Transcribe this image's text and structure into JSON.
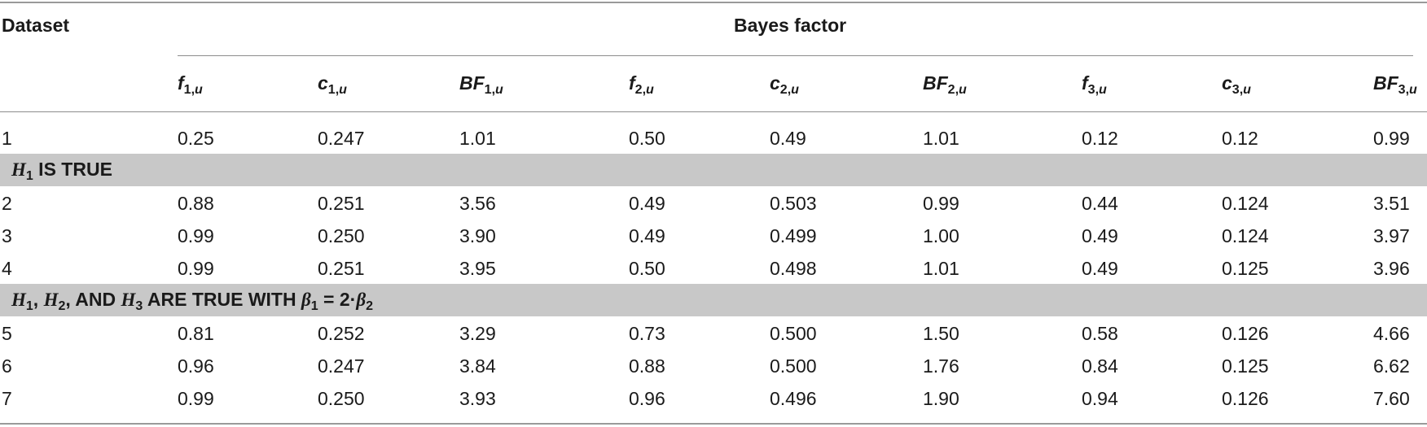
{
  "header": {
    "dataset_label": "Dataset",
    "bayes_factor_label": "Bayes factor",
    "columns": [
      {
        "sym": "f",
        "sub": "1,",
        "subi": "u"
      },
      {
        "sym": "c",
        "sub": "1,",
        "subi": "u"
      },
      {
        "sym": "BF",
        "sub": "1,",
        "subi": "u"
      },
      {
        "sym": "f",
        "sub": "2,",
        "subi": "u"
      },
      {
        "sym": "c",
        "sub": "2,",
        "subi": "u"
      },
      {
        "sym": "BF",
        "sub": "2,",
        "subi": "u"
      },
      {
        "sym": "f",
        "sub": "3,",
        "subi": "u"
      },
      {
        "sym": "c",
        "sub": "3,",
        "subi": "u"
      },
      {
        "sym": "BF",
        "sub": "3,",
        "subi": "u"
      }
    ]
  },
  "sections": {
    "s1": {
      "h": "H",
      "hs": "1",
      "rest": " IS TRUE"
    },
    "s2": {
      "h1": "H",
      "h1s": "1",
      "sep1": ", ",
      "h2": "H",
      "h2s": "2",
      "sep2": ", AND ",
      "h3": "H",
      "h3s": "3",
      "rest": " ARE TRUE WITH ",
      "b1": "β",
      "b1s": "1",
      "eq": " = 2·",
      "b2": "β",
      "b2s": "2"
    }
  },
  "rows": [
    {
      "id": "1",
      "cells": [
        "0.25",
        "0.247",
        "1.01",
        "0.50",
        "0.49",
        "1.01",
        "0.12",
        "0.12",
        "0.99"
      ]
    },
    {
      "id": "2",
      "cells": [
        "0.88",
        "0.251",
        "3.56",
        "0.49",
        "0.503",
        "0.99",
        "0.44",
        "0.124",
        "3.51"
      ]
    },
    {
      "id": "3",
      "cells": [
        "0.99",
        "0.250",
        "3.90",
        "0.49",
        "0.499",
        "1.00",
        "0.49",
        "0.124",
        "3.97"
      ]
    },
    {
      "id": "4",
      "cells": [
        "0.99",
        "0.251",
        "3.95",
        "0.50",
        "0.498",
        "1.01",
        "0.49",
        "0.125",
        "3.96"
      ]
    },
    {
      "id": "5",
      "cells": [
        "0.81",
        "0.252",
        "3.29",
        "0.73",
        "0.500",
        "1.50",
        "0.58",
        "0.126",
        "4.66"
      ]
    },
    {
      "id": "6",
      "cells": [
        "0.96",
        "0.247",
        "3.84",
        "0.88",
        "0.500",
        "1.76",
        "0.84",
        "0.125",
        "6.62"
      ]
    },
    {
      "id": "7",
      "cells": [
        "0.99",
        "0.250",
        "3.93",
        "0.96",
        "0.496",
        "1.90",
        "0.94",
        "0.126",
        "7.60"
      ]
    }
  ]
}
